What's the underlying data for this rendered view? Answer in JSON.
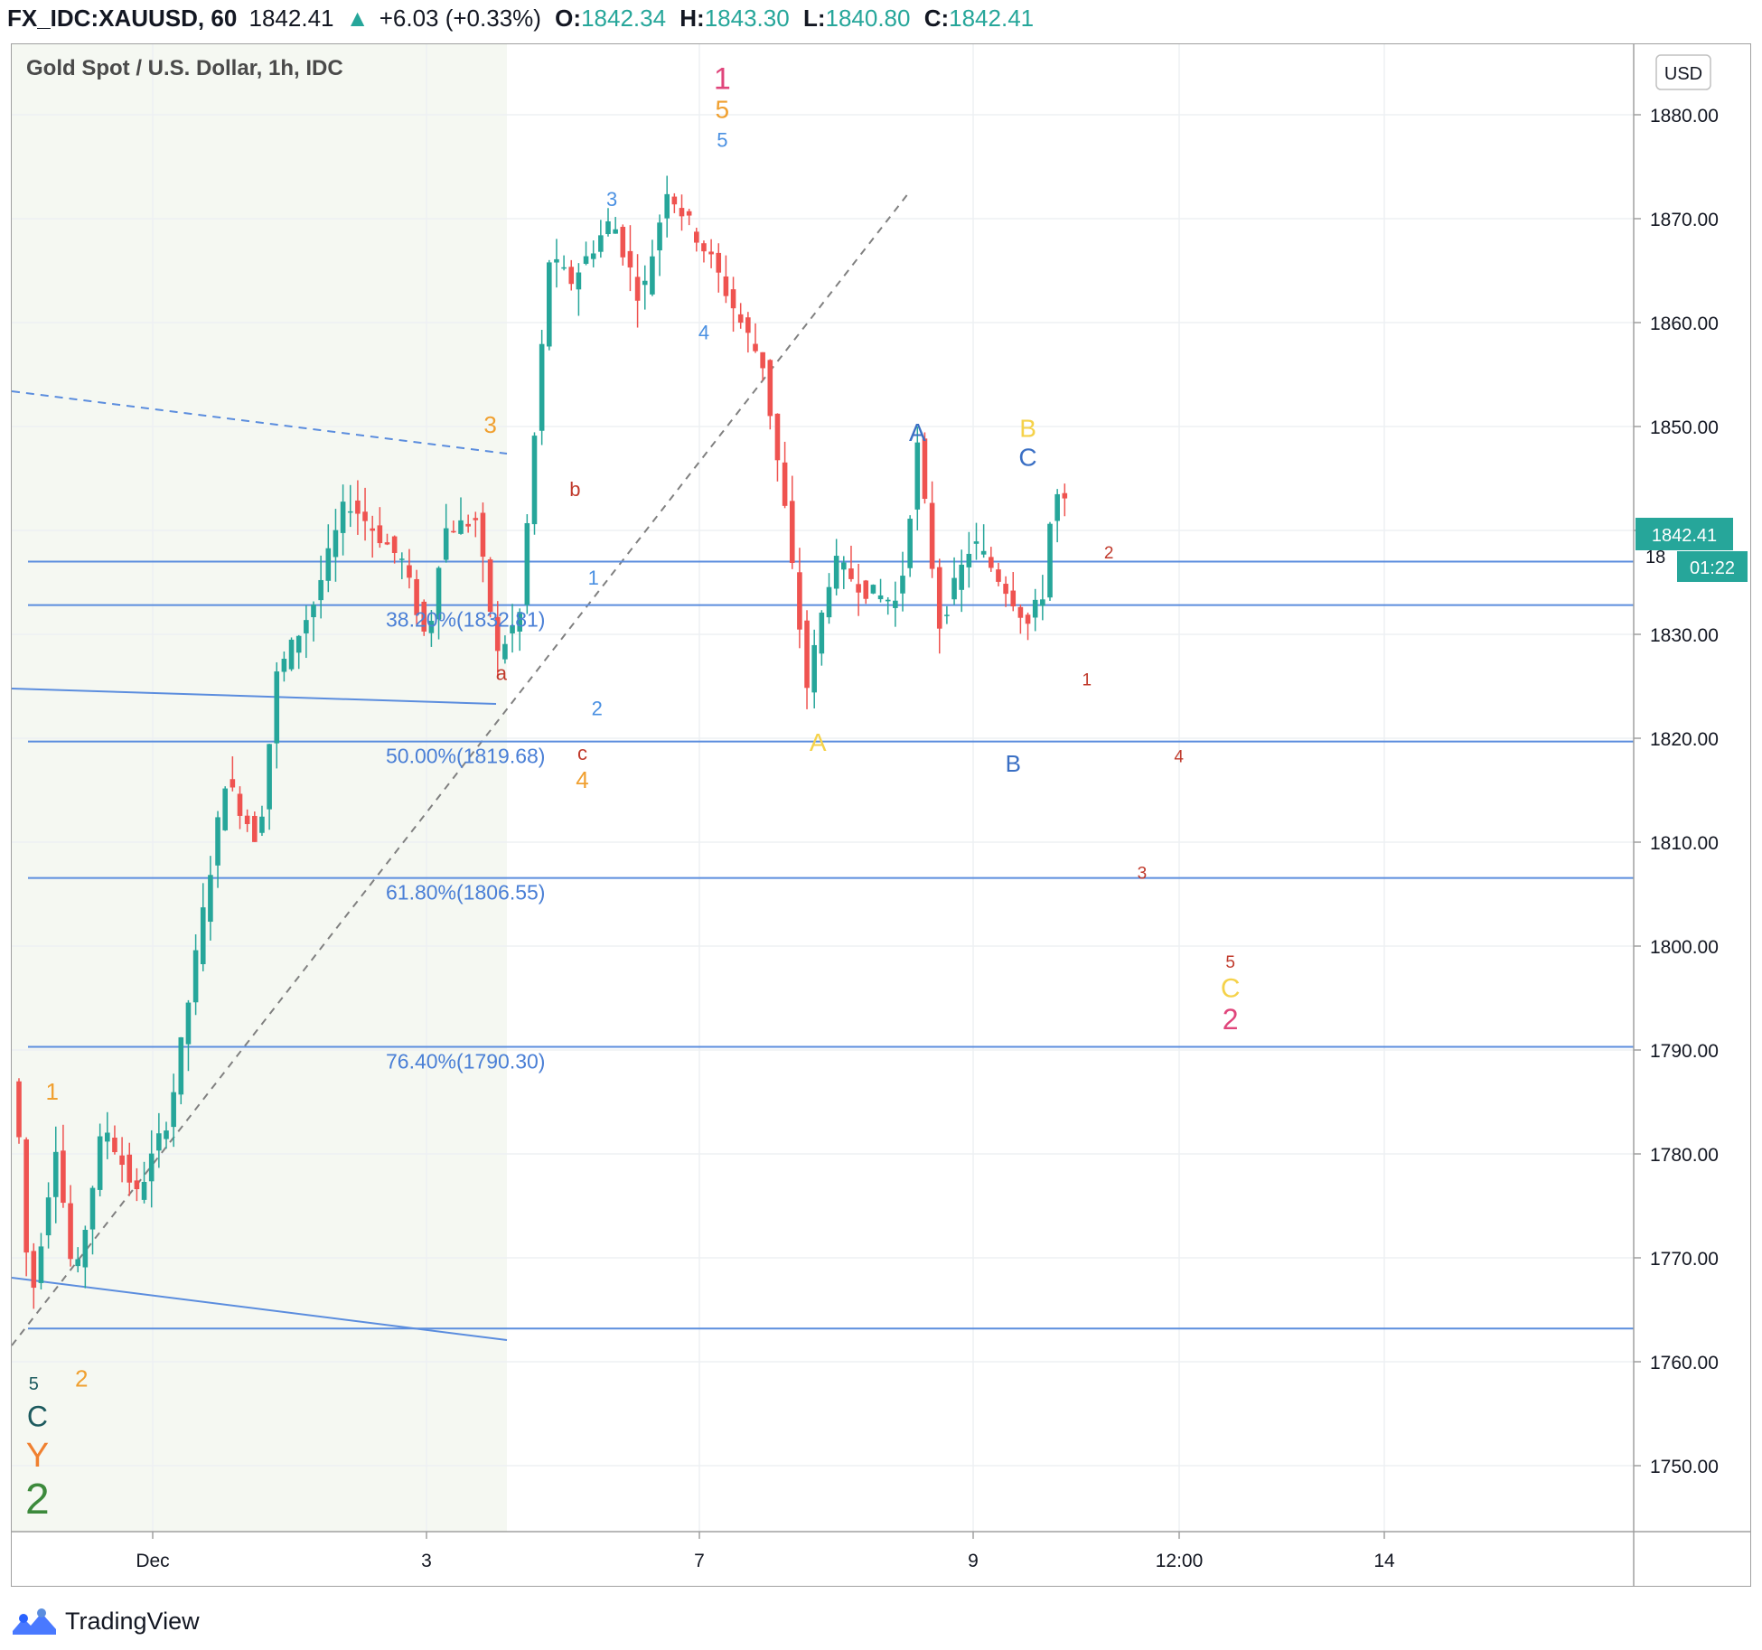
{
  "header": {
    "symbol": "FX_IDC:XAUUSD, 60",
    "last": "1842.41",
    "arrow": "▲",
    "change": "+6.03 (+0.33%)",
    "o_label": "O:",
    "o_value": "1842.34",
    "h_label": "H:",
    "h_value": "1843.30",
    "l_label": "L:",
    "l_value": "1840.80",
    "c_label": "C:",
    "c_value": "1842.41"
  },
  "chart_title": "Gold Spot / U.S. Dollar, 1h, IDC",
  "currency_button": "USD",
  "footer": {
    "brand": "TradingView"
  },
  "colors": {
    "up": "#26a69a",
    "down": "#ef5350",
    "fib_line": "#5b8dde",
    "fib_text": "#4a7fd6",
    "shaded_region": "#f5f8f2",
    "price_badge": "#26a69a"
  },
  "chart_data": {
    "type": "candlestick",
    "title": "Gold Spot / U.S. Dollar, 1h, IDC",
    "ylim": [
      1741,
      1888
    ],
    "y_ticks": [
      "1880.00",
      "1870.00",
      "1860.00",
      "1850.00",
      "1840.00",
      "1830.00",
      "1820.00",
      "1810.00",
      "1800.00",
      "1790.00",
      "1780.00",
      "1770.00",
      "1760.00",
      "1750.00"
    ],
    "x_ticks": [
      "Dec",
      "3",
      "7",
      "9",
      "12:00",
      "14"
    ],
    "last_price": "1842.41",
    "countdown": "01:22",
    "partial_tick": "18",
    "key_points": [
      {
        "t": 0.0,
        "price": 1787
      },
      {
        "t": 2.0,
        "price": 1765
      },
      {
        "t": 5.5,
        "price": 1781
      },
      {
        "t": 8.0,
        "price": 1767
      },
      {
        "t": 12.0,
        "price": 1783
      },
      {
        "t": 16.5,
        "price": 1776
      },
      {
        "t": 21.0,
        "price": 1784
      },
      {
        "t": 28.5,
        "price": 1816
      },
      {
        "t": 33.0,
        "price": 1810
      },
      {
        "t": 35.5,
        "price": 1826
      },
      {
        "t": 40.5,
        "price": 1833
      },
      {
        "t": 45.0,
        "price": 1843
      },
      {
        "t": 52.5,
        "price": 1837
      },
      {
        "t": 56.0,
        "price": 1829
      },
      {
        "t": 58.0,
        "price": 1840
      },
      {
        "t": 62.5,
        "price": 1841
      },
      {
        "t": 65.5,
        "price": 1828
      },
      {
        "t": 68.5,
        "price": 1832
      },
      {
        "t": 72.5,
        "price": 1866
      },
      {
        "t": 75.5,
        "price": 1864
      },
      {
        "t": 81.0,
        "price": 1870
      },
      {
        "t": 85.0,
        "price": 1862
      },
      {
        "t": 88.5,
        "price": 1873
      },
      {
        "t": 94.5,
        "price": 1866
      },
      {
        "t": 98.5,
        "price": 1860
      },
      {
        "t": 101.5,
        "price": 1856
      },
      {
        "t": 104.5,
        "price": 1842
      },
      {
        "t": 107.5,
        "price": 1825
      },
      {
        "t": 111.0,
        "price": 1837
      },
      {
        "t": 116.0,
        "price": 1834
      },
      {
        "t": 120.0,
        "price": 1833
      },
      {
        "t": 122.5,
        "price": 1848
      },
      {
        "t": 125.5,
        "price": 1831
      },
      {
        "t": 130.0,
        "price": 1839
      },
      {
        "t": 135.0,
        "price": 1834
      },
      {
        "t": 137.5,
        "price": 1831
      },
      {
        "t": 139.5,
        "price": 1834
      },
      {
        "t": 141.0,
        "price": 1844
      },
      {
        "t": 142.0,
        "price": 1842.41
      }
    ],
    "horizontal_levels": [
      1837,
      1832.81,
      1819.68,
      1806.55,
      1790.3,
      1763.2
    ],
    "fib_levels": [
      {
        "label": "38.20%(1832.81)",
        "price": 1832.81
      },
      {
        "label": "50.00%(1819.68)",
        "price": 1819.68
      },
      {
        "label": "61.80%(1806.55)",
        "price": 1806.55
      },
      {
        "label": "76.40%(1790.30)",
        "price": 1790.3
      }
    ],
    "wave_labels": [
      {
        "text": "1",
        "color": "#e0457b",
        "t": 95.5,
        "price": 1882.5,
        "size": 34
      },
      {
        "text": "5",
        "color": "#f0a030",
        "t": 95.5,
        "price": 1879.7,
        "size": 28
      },
      {
        "text": "5",
        "color": "#4a90e2",
        "t": 95.5,
        "price": 1876.9,
        "size": 22
      },
      {
        "text": "3",
        "color": "#4a90e2",
        "t": 80.5,
        "price": 1871.2,
        "size": 22
      },
      {
        "text": "4",
        "color": "#4a90e2",
        "t": 93.0,
        "price": 1858.4,
        "size": 22
      },
      {
        "text": "3",
        "color": "#f0a030",
        "t": 64.0,
        "price": 1849.4,
        "size": 26
      },
      {
        "text": "b",
        "color": "#c0392b",
        "t": 75.5,
        "price": 1843.3,
        "size": 22
      },
      {
        "text": "a",
        "color": "#c0392b",
        "t": 65.5,
        "price": 1825.6,
        "size": 22
      },
      {
        "text": "1",
        "color": "#4a90e2",
        "t": 78.0,
        "price": 1834.8,
        "size": 22
      },
      {
        "text": "2",
        "color": "#4a90e2",
        "t": 78.5,
        "price": 1822.2,
        "size": 22
      },
      {
        "text": "c",
        "color": "#c0392b",
        "t": 76.5,
        "price": 1817.9,
        "size": 22
      },
      {
        "text": "4",
        "color": "#f0a030",
        "t": 76.5,
        "price": 1815.2,
        "size": 26
      },
      {
        "text": "1",
        "color": "#f0a030",
        "t": 4.5,
        "price": 1785.2,
        "size": 26
      },
      {
        "text": "2",
        "color": "#f0a030",
        "t": 8.5,
        "price": 1757.6,
        "size": 26
      },
      {
        "text": "5",
        "color": "#1c5a5e",
        "t": 2.0,
        "price": 1757.3,
        "size": 20
      },
      {
        "text": "C",
        "color": "#1c5a5e",
        "t": 2.5,
        "price": 1753.8,
        "size": 32
      },
      {
        "text": "Y",
        "color": "#f08030",
        "t": 2.5,
        "price": 1749.9,
        "size": 38
      },
      {
        "text": "2",
        "color": "#3c8a3c",
        "t": 2.5,
        "price": 1745.4,
        "size": 48
      },
      {
        "text": "A",
        "color": "#f5d24a",
        "t": 108.5,
        "price": 1818.8,
        "size": 28
      },
      {
        "text": "A",
        "color": "#3a6fc4",
        "t": 122.0,
        "price": 1848.6,
        "size": 28
      },
      {
        "text": "B",
        "color": "#f5d24a",
        "t": 137.0,
        "price": 1849.0,
        "size": 28
      },
      {
        "text": "C",
        "color": "#3a6fc4",
        "t": 137.0,
        "price": 1846.2,
        "size": 28
      },
      {
        "text": "B",
        "color": "#3a6fc4",
        "t": 135.0,
        "price": 1816.8,
        "size": 26
      },
      {
        "text": "2",
        "color": "#c0392b",
        "t": 148.0,
        "price": 1837.3,
        "size": 19
      },
      {
        "text": "1",
        "color": "#c0392b",
        "t": 145.0,
        "price": 1825.1,
        "size": 19
      },
      {
        "text": "4",
        "color": "#c0392b",
        "t": 157.5,
        "price": 1817.7,
        "size": 19
      },
      {
        "text": "3",
        "color": "#c0392b",
        "t": 152.5,
        "price": 1806.5,
        "size": 19
      },
      {
        "text": "5",
        "color": "#c0392b",
        "t": 164.5,
        "price": 1797.9,
        "size": 19
      },
      {
        "text": "C",
        "color": "#f5d24a",
        "t": 164.5,
        "price": 1795.1,
        "size": 30
      },
      {
        "text": "2",
        "color": "#e0457b",
        "t": 164.5,
        "price": 1792.0,
        "size": 32
      }
    ]
  }
}
